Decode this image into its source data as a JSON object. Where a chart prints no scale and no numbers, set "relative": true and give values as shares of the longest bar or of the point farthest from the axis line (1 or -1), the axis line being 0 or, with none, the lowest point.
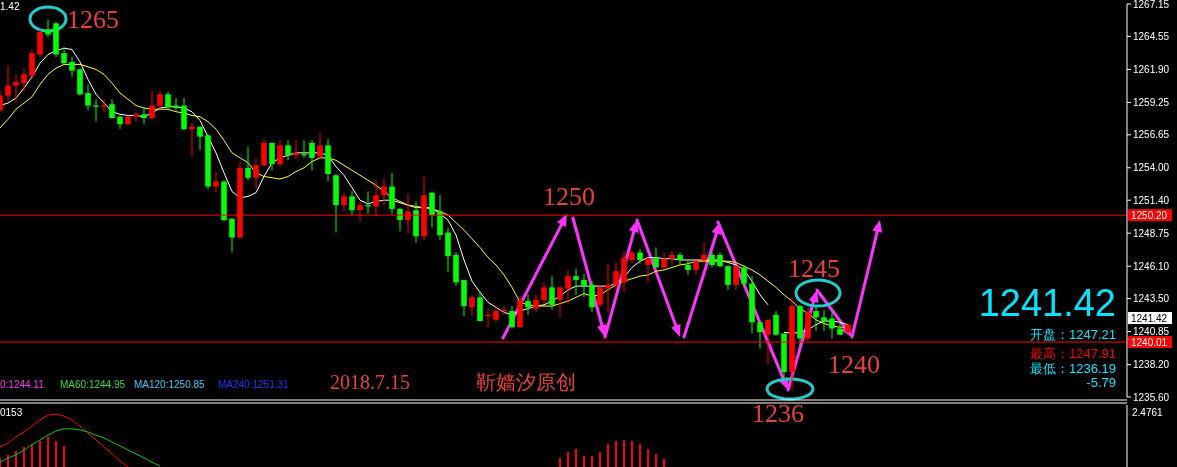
{
  "chart_data": [
    {
      "type": "candlestick",
      "categories": [
        null,
        null,
        null,
        null,
        null,
        null,
        null,
        null,
        null,
        null,
        null,
        null,
        null,
        null,
        null,
        null,
        null,
        null,
        null,
        null,
        null,
        null,
        null,
        null,
        null,
        null,
        null,
        null,
        null,
        null,
        null,
        null,
        null,
        null,
        null,
        null,
        null,
        null,
        null,
        null,
        null,
        null,
        null,
        null,
        null,
        null,
        null,
        null,
        null,
        null,
        null,
        null,
        null,
        null,
        null,
        null,
        null,
        null,
        null,
        null,
        null,
        null,
        null,
        null,
        null,
        null,
        null,
        null,
        null,
        null,
        null,
        null,
        null,
        null,
        null,
        null,
        null,
        null,
        null,
        null,
        null,
        null,
        null,
        null,
        null,
        null,
        null,
        null,
        null,
        null,
        null,
        null,
        null,
        null,
        null,
        null,
        null,
        null,
        null,
        null,
        null,
        null,
        null,
        null,
        null,
        null,
        null,
        null,
        null,
        null,
        null,
        null,
        null,
        null,
        null,
        null,
        null,
        null,
        null,
        null,
        null,
        null,
        null,
        null,
        null,
        null,
        null,
        null,
        null,
        null,
        null,
        null,
        null,
        null,
        null,
        null,
        null,
        null,
        null,
        null,
        null
      ],
      "ohlc": [
        [
          1258.6,
          1260.2,
          1258.5,
          1259.8
        ],
        [
          1259.8,
          1262.2,
          1259.3,
          1260.6
        ],
        [
          1260.6,
          1261.5,
          1259.3,
          1260.9
        ],
        [
          1260.8,
          1262.0,
          1260.1,
          1261.5
        ],
        [
          1261.4,
          1263.5,
          1261.2,
          1263.2
        ],
        [
          1263.1,
          1265.1,
          1262.9,
          1264.9
        ],
        [
          1265.1,
          1265.9,
          1264.5,
          1264.7
        ],
        [
          1265.6,
          1265.7,
          1262.9,
          1263.1
        ],
        [
          1263.2,
          1263.7,
          1262.3,
          1262.4
        ],
        [
          1262.5,
          1262.9,
          1261.3,
          1261.8
        ],
        [
          1261.9,
          1262.0,
          1259.8,
          1259.9
        ],
        [
          1260.0,
          1260.7,
          1258.6,
          1259.0
        ],
        [
          1259.0,
          1259.5,
          1257.7,
          1258.9
        ],
        [
          1258.9,
          1259.5,
          1258.5,
          1259.0
        ],
        [
          1259.1,
          1259.5,
          1258.0,
          1258.0
        ],
        [
          1258.1,
          1258.2,
          1257.1,
          1257.5
        ],
        [
          1257.5,
          1258.2,
          1257.4,
          1258.1
        ],
        [
          1258.1,
          1258.5,
          1257.7,
          1258.3
        ],
        [
          1258.3,
          1258.9,
          1257.5,
          1258.0
        ],
        [
          1258.0,
          1260.2,
          1257.9,
          1259.0
        ],
        [
          1259.0,
          1260.2,
          1258.6,
          1259.9
        ],
        [
          1259.9,
          1260.1,
          1258.6,
          1258.9
        ],
        [
          1259.0,
          1259.6,
          1258.6,
          1258.8
        ],
        [
          1259.0,
          1259.6,
          1257.0,
          1257.1
        ],
        [
          1257.1,
          1257.6,
          1254.9,
          1257.3
        ],
        [
          1257.3,
          1257.3,
          1255.4,
          1256.5
        ],
        [
          1256.6,
          1256.7,
          1252.3,
          1252.5
        ],
        [
          1252.5,
          1253.7,
          1252.0,
          1252.9
        ],
        [
          1252.9,
          1253.0,
          1249.7,
          1249.8
        ],
        [
          1249.9,
          1250.0,
          1247.2,
          1248.4
        ],
        [
          1248.4,
          1254.5,
          1248.3,
          1254.0
        ],
        [
          1254.0,
          1255.7,
          1253.0,
          1253.2
        ],
        [
          1253.2,
          1254.8,
          1252.3,
          1254.2
        ],
        [
          1254.2,
          1256.3,
          1254.1,
          1256.0
        ],
        [
          1256.0,
          1256.0,
          1253.8,
          1254.3
        ],
        [
          1254.3,
          1256.2,
          1254.1,
          1255.8
        ],
        [
          1255.8,
          1256.2,
          1254.6,
          1255.0
        ],
        [
          1255.0,
          1256.2,
          1254.7,
          1255.2
        ],
        [
          1255.1,
          1256.2,
          1254.8,
          1255.0
        ],
        [
          1256.0,
          1256.2,
          1253.8,
          1254.8
        ],
        [
          1254.9,
          1256.8,
          1254.7,
          1255.8
        ],
        [
          1255.8,
          1256.3,
          1252.9,
          1253.5
        ],
        [
          1253.4,
          1253.5,
          1248.8,
          1251.0
        ],
        [
          1251.0,
          1252.0,
          1250.5,
          1251.7
        ],
        [
          1251.7,
          1252.1,
          1250.2,
          1250.6
        ],
        [
          1250.6,
          1251.3,
          1249.7,
          1251.0
        ],
        [
          1251.0,
          1252.1,
          1250.3,
          1250.9
        ],
        [
          1250.9,
          1253.0,
          1250.1,
          1251.8
        ],
        [
          1251.8,
          1253.2,
          1251.0,
          1252.5
        ],
        [
          1252.5,
          1253.6,
          1250.3,
          1250.7
        ],
        [
          1250.7,
          1250.8,
          1248.9,
          1249.8
        ],
        [
          1249.8,
          1251.9,
          1248.7,
          1250.5
        ],
        [
          1250.6,
          1251.3,
          1248.0,
          1248.5
        ],
        [
          1248.5,
          1253.3,
          1248.2,
          1251.8
        ],
        [
          1252.0,
          1252.1,
          1249.2,
          1250.2
        ],
        [
          1250.5,
          1251.8,
          1248.2,
          1248.6
        ],
        [
          1248.8,
          1249.2,
          1245.6,
          1246.9
        ],
        [
          1247.0,
          1247.2,
          1244.5,
          1244.8
        ],
        [
          1245.0,
          1245.0,
          1242.1,
          1242.9
        ],
        [
          1242.8,
          1243.8,
          1242.1,
          1243.6
        ],
        [
          1243.6,
          1244.1,
          1241.7,
          1241.7
        ],
        [
          1242.1,
          1242.7,
          1241.2,
          1242.2
        ],
        [
          1241.8,
          1242.9,
          1241.6,
          1242.5
        ],
        [
          1242.5,
          1242.9,
          1242.2,
          1242.6
        ],
        [
          1242.5,
          1242.9,
          1241.1,
          1241.2
        ],
        [
          1241.2,
          1243.7,
          1241.2,
          1243.4
        ],
        [
          1243.3,
          1243.8,
          1242.2,
          1242.8
        ],
        [
          1242.7,
          1243.8,
          1242.4,
          1243.4
        ],
        [
          1243.4,
          1244.8,
          1243.1,
          1244.4
        ],
        [
          1244.4,
          1245.3,
          1242.6,
          1243.0
        ],
        [
          1243.4,
          1244.4,
          1242.0,
          1244.4
        ],
        [
          1244.3,
          1245.8,
          1243.1,
          1245.3
        ],
        [
          1245.3,
          1245.9,
          1243.8,
          1245.0
        ],
        [
          1245.0,
          1245.5,
          1243.6,
          1244.5
        ],
        [
          1244.6,
          1244.9,
          1242.4,
          1242.8
        ],
        [
          1243.0,
          1244.6,
          1242.8,
          1244.4
        ],
        [
          1244.3,
          1246.3,
          1242.4,
          1244.6
        ],
        [
          1244.6,
          1246.4,
          1244.2,
          1245.7
        ],
        [
          1244.8,
          1247.3,
          1244.0,
          1246.8
        ],
        [
          1246.6,
          1247.4,
          1246.3,
          1247.2
        ],
        [
          1247.2,
          1247.5,
          1246.3,
          1246.6
        ],
        [
          1246.2,
          1246.8,
          1244.8,
          1246.7
        ],
        [
          1246.8,
          1247.6,
          1246.0,
          1246.0
        ],
        [
          1246.0,
          1247.2,
          1245.9,
          1246.7
        ],
        [
          1246.7,
          1247.3,
          1246.2,
          1247.0
        ],
        [
          1247.0,
          1247.2,
          1246.2,
          1246.6
        ],
        [
          1246.2,
          1246.6,
          1245.4,
          1245.8
        ],
        [
          1245.8,
          1246.6,
          1245.4,
          1246.5
        ],
        [
          1246.6,
          1248.0,
          1246.3,
          1247.0
        ],
        [
          1247.0,
          1247.3,
          1246.0,
          1246.2
        ],
        [
          1247.0,
          1247.2,
          1246.0,
          1246.1
        ],
        [
          1246.1,
          1246.2,
          1244.2,
          1244.6
        ],
        [
          1244.6,
          1246.2,
          1244.2,
          1246.1
        ],
        [
          1246.0,
          1246.2,
          1244.4,
          1244.7
        ],
        [
          1244.7,
          1245.3,
          1240.7,
          1241.6
        ],
        [
          1241.6,
          1241.6,
          1239.5,
          1240.8
        ],
        [
          1240.6,
          1241.8,
          1238.2,
          1241.8
        ],
        [
          1242.2,
          1242.5,
          1240.5,
          1240.6
        ],
        [
          1240.7,
          1240.7,
          1237.0,
          1237.6
        ],
        [
          1237.6,
          1243.6,
          1236.2,
          1242.9
        ],
        [
          1242.9,
          1243.0,
          1239.7,
          1240.3
        ],
        [
          1240.3,
          1242.8,
          1240.2,
          1242.4
        ],
        [
          1242.5,
          1242.9,
          1240.9,
          1242.0
        ],
        [
          1242.0,
          1242.6,
          1240.9,
          1241.7
        ],
        [
          1241.9,
          1242.5,
          1240.3,
          1241.1
        ],
        [
          1241.1,
          1241.6,
          1240.6,
          1240.6
        ],
        [
          1240.8,
          1241.5,
          1240.6,
          1241.4
        ],
        null,
        null,
        null,
        null,
        null,
        null,
        null,
        null,
        null,
        null,
        null,
        null,
        null,
        null,
        null,
        null,
        null,
        null,
        null,
        null,
        null,
        null,
        null,
        null,
        null,
        null,
        null,
        null,
        null,
        null,
        null,
        null,
        null,
        null
      ],
      "series": [
        {
          "type": "line",
          "color": "#ffffff",
          "values": [
            1259.0,
            1259.2,
            1259.6,
            1260.4,
            1261.3,
            1262.4,
            1263.1,
            1263.4,
            1263.6,
            1263.5,
            1262.5,
            1261.1,
            1259.9,
            1259.2,
            1258.5,
            1258.3,
            1258.2,
            1258.2,
            1258.1,
            1258.4,
            1258.8,
            1258.9,
            1258.9,
            1258.8,
            1258.5,
            1257.8,
            1256.5,
            1255.2,
            1253.6,
            1252.1,
            1251.6,
            1251.7,
            1252.0,
            1253.3,
            1254.4,
            1254.8,
            1255.0,
            1255.2,
            1255.2,
            1255.2,
            1255.2,
            1255.0,
            1254.1,
            1253.4,
            1252.4,
            1251.4,
            1251.1,
            1251.3,
            1251.4,
            1251.4,
            1251.2,
            1251.0,
            1250.8,
            1250.8,
            1250.8,
            1250.3,
            1249.8,
            1248.6,
            1246.6,
            1244.9,
            1244.0,
            1243.2,
            1242.8,
            1242.4,
            1242.2,
            1242.5,
            1242.7,
            1242.9,
            1243.0,
            1243.3,
            1243.7,
            1244.2,
            1244.5,
            1244.5,
            1244.5,
            1244.5,
            1244.5,
            1244.7,
            1245.2,
            1246.0,
            1246.5,
            1246.8,
            1246.8,
            1246.7,
            1246.7,
            1246.6,
            1246.6,
            1246.6,
            1246.6,
            1246.6,
            1246.6,
            1246.4,
            1246.2,
            1245.8,
            1244.9,
            1243.8,
            1243.0,
            null,
            1240.8,
            1240.7,
            1240.8,
            1241.0,
            1241.4,
            1241.7,
            1241.7,
            1241.6,
            1241.4,
            null,
            null,
            null,
            null,
            null,
            null,
            null,
            null,
            null,
            null,
            null,
            null,
            null,
            null,
            null,
            null,
            null,
            null,
            null,
            null,
            null,
            null,
            null,
            null,
            null,
            null,
            null,
            null,
            null,
            null,
            null,
            null,
            null,
            null
          ]
        },
        {
          "type": "line",
          "color": "#ffff00",
          "values": [
            1257.2,
            1257.9,
            1258.7,
            1259.2,
            1259.7,
            1260.7,
            1261.5,
            1262.0,
            1262.3,
            1262.3,
            1262.3,
            1262.1,
            1261.9,
            1261.5,
            1260.8,
            1260.0,
            1259.5,
            1259.0,
            1258.8,
            1258.7,
            1258.7,
            1258.7,
            1258.5,
            1258.4,
            1258.2,
            1258.1,
            1257.7,
            1257.1,
            1256.2,
            1255.2,
            1254.8,
            1254.4,
            1253.6,
            1253.3,
            1253.2,
            1253.1,
            1253.3,
            1253.7,
            1254.0,
            1254.5,
            1254.8,
            1254.8,
            1254.6,
            1254.2,
            1253.8,
            1253.4,
            1253.0,
            1252.6,
            1252.1,
            1251.6,
            1251.3,
            1251.0,
            1250.9,
            1250.8,
            1250.7,
            1250.5,
            1250.2,
            1249.6,
            1249.0,
            1248.3,
            1247.6,
            1246.8,
            1246.2,
            1245.4,
            1244.4,
            1243.2,
            1243.0,
            1242.9,
            1242.9,
            1242.9,
            1243.1,
            1243.3,
            1243.6,
            1243.9,
            1243.7,
            1243.8,
            1244.2,
            1244.6,
            1244.9,
            1245.1,
            1245.3,
            1245.4,
            1245.7,
            1245.8,
            1246.0,
            1246.2,
            1246.3,
            1246.5,
            1246.5,
            1246.5,
            1246.5,
            1246.5,
            1246.4,
            1246.1,
            1245.8,
            1245.4,
            1244.9,
            1244.4,
            1243.8,
            1243.3,
            1242.7,
            1242.3,
            1241.8,
            1241.5,
            1241.3,
            1241.2,
            1241.2,
            null,
            null,
            null,
            null,
            null,
            null,
            null,
            null,
            null,
            null,
            null,
            null,
            null,
            null,
            null,
            null,
            null,
            null,
            null,
            null,
            null,
            null,
            null,
            null,
            null,
            null,
            null,
            null,
            null,
            null,
            null,
            null,
            null,
            null
          ]
        }
      ],
      "ylim": [
        1235.6,
        1267.15
      ],
      "yticks": [
        {
          "value": 1235.6,
          "label": "1235.60"
        },
        {
          "value": 1238.2,
          "label": "1238.20"
        },
        1240.85,
        {
          "value": 1243.5,
          "label": "1243.50"
        },
        {
          "value": 1246.1,
          "label": "1246.10"
        },
        1248.75,
        {
          "value": 1251.4,
          "label": "1251.40"
        },
        {
          "value": 1254,
          "label": "1254.00"
        },
        1256.65,
        1259.25,
        {
          "value": 1261.9,
          "label": "1261.90"
        },
        1264.55,
        1267.15
      ],
      "ref_lines": [
        {
          "axis": "y",
          "value": 1250.2,
          "label": "1250.20",
          "color": "#ff0000"
        },
        {
          "axis": "y",
          "value": 1240.01,
          "label": "1240.01",
          "color": "#ff0000"
        }
      ],
      "annotations": [
        "1.42",
        "1265",
        "1250",
        "1245",
        "1240",
        "1236",
        "2018.7.15",
        "靳嫱汐原创",
        "0:1244.11",
        "MA60:1244.95",
        "MA120:1250.85",
        "MA240:1251.31",
        "1241.42",
        "开盘：1247.21",
        "最高：1247.91",
        "最低：1236.19",
        "-5.79",
        "1241.42"
      ]
    },
    {
      "type": "bar",
      "relative": true,
      "categories": [
        null,
        null,
        null,
        null,
        null,
        null,
        null,
        null,
        null,
        null,
        null,
        null,
        null,
        null,
        null,
        null,
        null,
        null,
        null,
        null,
        null,
        null,
        null,
        null,
        null,
        null,
        null,
        null,
        null,
        null,
        null,
        null,
        null,
        null,
        null,
        null,
        null,
        null,
        null,
        null,
        null,
        null,
        null,
        null,
        null,
        null,
        null,
        null,
        null,
        null,
        null,
        null,
        null,
        null,
        null,
        null,
        null,
        null,
        null,
        null,
        null,
        null,
        null,
        null,
        null,
        null,
        null,
        null,
        null,
        null,
        null,
        null,
        null,
        null,
        null,
        null,
        null,
        null,
        null,
        null,
        null,
        null,
        null,
        null,
        null,
        null,
        null,
        null,
        null,
        null,
        null,
        null,
        null,
        null,
        null,
        null,
        null,
        null,
        null,
        null,
        null,
        null,
        null,
        null,
        null,
        null,
        null,
        null,
        null,
        null,
        null,
        null,
        null,
        null,
        null,
        null,
        null,
        null,
        null,
        null,
        null,
        null,
        null,
        null,
        null,
        null,
        null,
        null,
        null,
        null,
        null,
        null,
        null,
        null,
        null,
        null,
        null,
        null,
        null,
        null,
        null
      ],
      "series": [
        {
          "type": "bar",
          "color": "#ff0000",
          "values": [
            0.17,
            0.23,
            0.3,
            0.38,
            0.43,
            0.49,
            0.57,
            0.49,
            0.4,
            null,
            null,
            null,
            null,
            null,
            null,
            null,
            null,
            null,
            null,
            null,
            null,
            null,
            null,
            null,
            null,
            null,
            null,
            null,
            null,
            null,
            null,
            null,
            null,
            null,
            null,
            null,
            null,
            null,
            null,
            null,
            null,
            null,
            null,
            null,
            null,
            null,
            null,
            null,
            null,
            null,
            null,
            null,
            null,
            null,
            null,
            null,
            null,
            null,
            null,
            null,
            null,
            null,
            null,
            null,
            null,
            null,
            null,
            null,
            null,
            null,
            0.17,
            0.28,
            0.34,
            0.21,
            0.21,
            0.28,
            0.43,
            0.49,
            0.51,
            0.49,
            0.43,
            0.34,
            0.25,
            0.15,
            null,
            null,
            null,
            null,
            null,
            null,
            null,
            null,
            null,
            null,
            null,
            null,
            null,
            null,
            null,
            null,
            null,
            null,
            null,
            null,
            null,
            null,
            null,
            null,
            null,
            null,
            null,
            null,
            null,
            null,
            null,
            null,
            null,
            null,
            null,
            null,
            null,
            null,
            null,
            null,
            null,
            null,
            null,
            null,
            null,
            null,
            null,
            null,
            null,
            null,
            null,
            null,
            null,
            null,
            null,
            null,
            null
          ]
        },
        {
          "type": "line",
          "color": "#ff0000",
          "values": [
            0.38,
            0.45,
            0.57,
            0.66,
            0.77,
            0.89,
            0.98,
            1,
            0.96,
            0.89,
            0.77,
            0.64,
            0.51,
            0.38,
            0.25,
            0.11,
            0,
            null,
            null,
            null,
            null,
            null,
            null,
            null,
            null,
            null,
            null,
            null,
            null,
            null,
            null,
            null,
            null,
            null,
            null,
            null,
            null,
            null,
            null,
            null,
            null,
            null,
            null,
            null,
            null,
            null,
            null,
            null,
            null,
            null,
            null,
            null,
            null,
            null,
            null,
            null,
            null,
            null,
            null,
            null,
            null,
            null,
            null,
            null,
            null,
            null,
            null,
            null,
            null,
            null,
            null,
            null,
            null,
            null,
            null,
            null,
            null,
            null,
            null,
            null,
            null,
            null,
            null,
            null,
            null,
            null,
            null,
            null,
            null,
            null,
            null,
            null,
            null,
            null,
            null,
            null,
            null,
            null,
            null,
            null,
            null,
            null,
            null,
            null,
            null,
            null,
            null,
            null,
            null,
            null,
            null,
            null,
            null,
            null,
            null,
            null,
            null,
            null,
            null,
            null,
            null,
            null,
            null,
            null,
            null,
            null,
            null,
            null,
            null,
            null,
            null,
            null,
            null,
            null,
            null,
            null,
            null,
            null,
            null,
            null,
            null
          ]
        },
        {
          "type": "line",
          "color": "#00cc00",
          "values": [
            0.09,
            0.17,
            0.23,
            0.32,
            0.42,
            0.51,
            0.6,
            0.68,
            0.72,
            0.72,
            0.7,
            0.66,
            0.6,
            0.55,
            0.47,
            0.4,
            0.32,
            0.25,
            0.17,
            0.09,
            0.02,
            null,
            null,
            null,
            null,
            null,
            null,
            null,
            null,
            null,
            null,
            null,
            null,
            null,
            null,
            null,
            null,
            null,
            null,
            null,
            null,
            null,
            null,
            null,
            null,
            null,
            null,
            null,
            null,
            null,
            null,
            null,
            null,
            null,
            null,
            null,
            null,
            null,
            null,
            null,
            null,
            null,
            null,
            null,
            null,
            null,
            null,
            null,
            null,
            null,
            null,
            null,
            null,
            null,
            null,
            null,
            null,
            null,
            null,
            null,
            null,
            null,
            null,
            null,
            null,
            null,
            null,
            null,
            null,
            null,
            null,
            null,
            null,
            null,
            null,
            null,
            null,
            null,
            null,
            null,
            null,
            null,
            null,
            null,
            null,
            null,
            null,
            null,
            null,
            null,
            null,
            null,
            null,
            null,
            null,
            null,
            null,
            null,
            null,
            null,
            null,
            null,
            null,
            null,
            null,
            null,
            null,
            null,
            null,
            null,
            null,
            null,
            null,
            null,
            null,
            null,
            null,
            null,
            null,
            null,
            null
          ]
        }
      ],
      "annotations": [
        "0153",
        "2.4761"
      ]
    }
  ]
}
